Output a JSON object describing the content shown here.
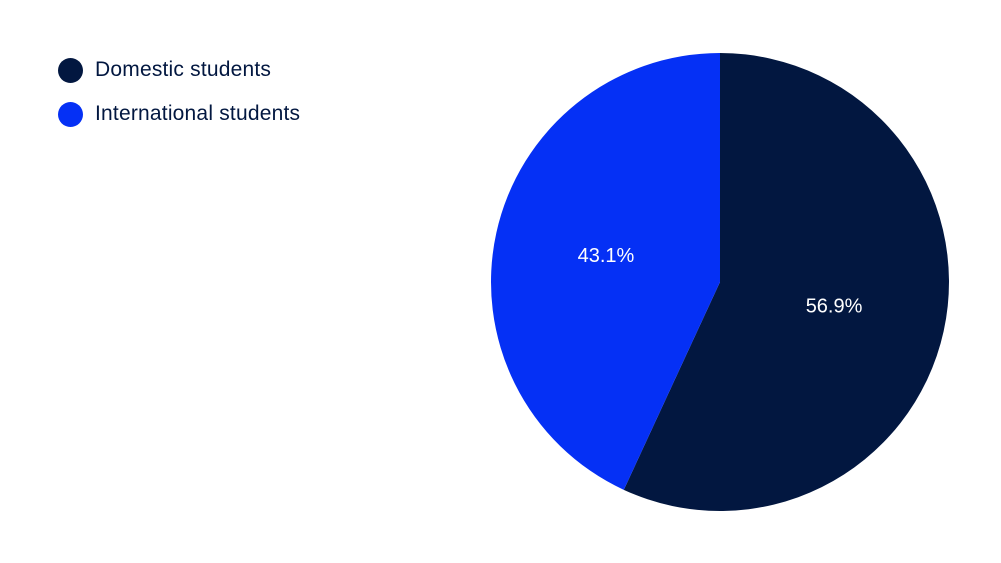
{
  "chart_data": {
    "type": "pie",
    "title": "",
    "legend_position": "top-left",
    "series": [
      {
        "name": "Domestic students",
        "value": 56.9,
        "label": "56.9%",
        "color": "#021740"
      },
      {
        "name": "International students",
        "value": 43.1,
        "label": "43.1%",
        "color": "#0530f5"
      }
    ]
  }
}
